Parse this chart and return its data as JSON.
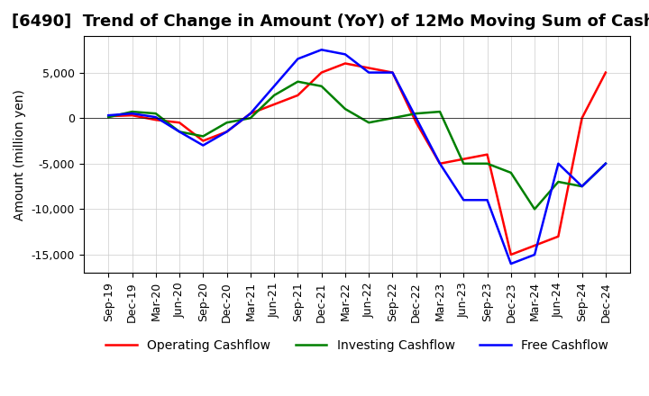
{
  "title": "[6490]  Trend of Change in Amount (YoY) of 12Mo Moving Sum of Cashflows",
  "ylabel": "Amount (million yen)",
  "x_labels": [
    "Sep-19",
    "Dec-19",
    "Mar-20",
    "Jun-20",
    "Sep-20",
    "Dec-20",
    "Mar-21",
    "Jun-21",
    "Sep-21",
    "Dec-21",
    "Mar-22",
    "Jun-22",
    "Sep-22",
    "Dec-22",
    "Mar-23",
    "Jun-23",
    "Sep-23",
    "Dec-23",
    "Mar-24",
    "Jun-24",
    "Sep-24",
    "Dec-24"
  ],
  "operating": [
    200,
    300,
    -200,
    -500,
    -2500,
    -1500,
    500,
    1500,
    2500,
    5000,
    6000,
    5500,
    5000,
    -500,
    -5000,
    -4500,
    -4000,
    -15000,
    -14000,
    -13000,
    0,
    5000
  ],
  "investing": [
    100,
    700,
    500,
    -1500,
    -2000,
    -500,
    0,
    2500,
    4000,
    3500,
    1000,
    -500,
    0,
    500,
    700,
    -5000,
    -5000,
    -6000,
    -10000,
    -7000,
    -7500,
    -5000
  ],
  "free": [
    300,
    500,
    100,
    -1500,
    -3000,
    -1500,
    500,
    3500,
    6500,
    7500,
    7000,
    5000,
    5000,
    0,
    -5000,
    -9000,
    -9000,
    -16000,
    -15000,
    -5000,
    -7500,
    -5000
  ],
  "operating_color": "#ff0000",
  "investing_color": "#008000",
  "free_color": "#0000ff",
  "ylim": [
    -17000,
    9000
  ],
  "yticks": [
    5000,
    0,
    -5000,
    -10000,
    -15000
  ],
  "background_color": "#ffffff",
  "title_fontsize": 13,
  "label_fontsize": 10,
  "tick_fontsize": 9
}
